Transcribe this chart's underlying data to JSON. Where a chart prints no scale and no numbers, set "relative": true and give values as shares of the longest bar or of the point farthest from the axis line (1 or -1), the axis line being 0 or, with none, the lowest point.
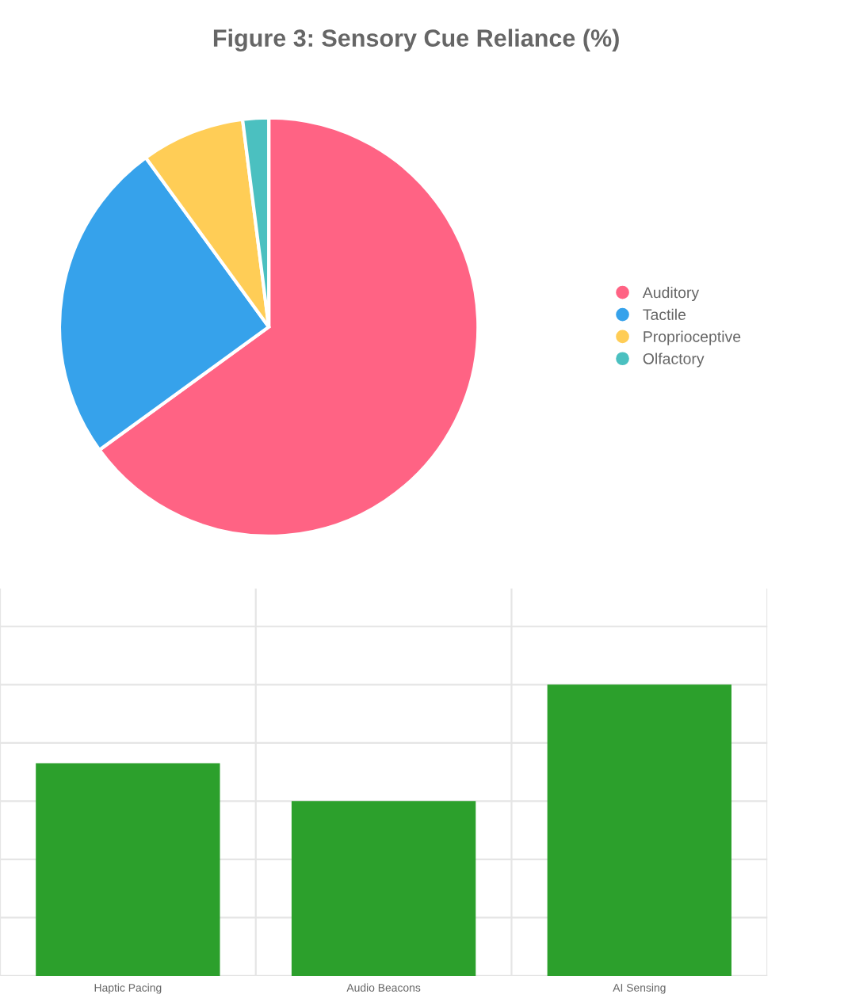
{
  "chart_data": [
    {
      "type": "pie",
      "title": "Figure 3: Sensory Cue Reliance (%)",
      "categories": [
        "Auditory",
        "Tactile",
        "Proprioceptive",
        "Olfactory"
      ],
      "values": [
        65,
        25,
        8,
        2
      ],
      "colors": [
        "#ff6384",
        "#36a2eb",
        "#ffcd56",
        "#4bc0c0"
      ],
      "legend": "right"
    },
    {
      "type": "bar",
      "categories": [
        "Haptic Pacing",
        "Audio Beacons",
        "AI Sensing"
      ],
      "values": [
        0.73,
        0.6,
        1
      ],
      "color": "#2ca02c",
      "relative": true,
      "grid": true
    }
  ]
}
